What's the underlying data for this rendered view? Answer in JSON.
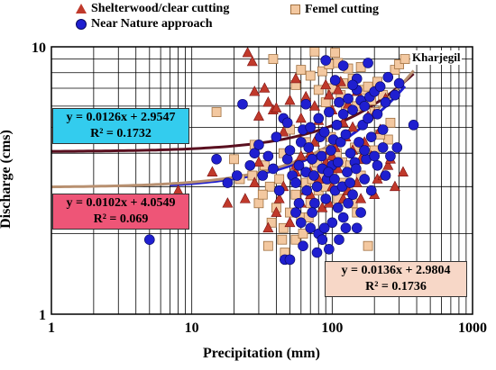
{
  "chart_data": {
    "type": "scatter",
    "xlabel": "Precipitation (mm)",
    "ylabel": "Discharge (cms)",
    "xscale": "log",
    "yscale": "log",
    "xlim": [
      1,
      1000
    ],
    "ylim": [
      1,
      10
    ],
    "x_ticks": [
      "1",
      "10",
      "100",
      "1000"
    ],
    "y_ticks": [
      "1",
      "10"
    ],
    "grid": true,
    "site_label": "Kharjegil",
    "series": [
      {
        "name": "Shelterwood/clear cutting",
        "marker": "triangle",
        "color": "#c0392b",
        "points": [
          [
            8,
            2.9
          ],
          [
            14,
            3.4
          ],
          [
            18,
            2.6
          ],
          [
            25,
            9.5
          ],
          [
            27,
            8.8
          ],
          [
            28,
            6.8
          ],
          [
            30,
            5.5
          ],
          [
            33,
            7.0
          ],
          [
            35,
            6.2
          ],
          [
            38,
            5.8
          ],
          [
            40,
            5.9
          ],
          [
            45,
            4.8
          ],
          [
            50,
            6.3
          ],
          [
            55,
            7.6
          ],
          [
            60,
            5.4
          ],
          [
            65,
            6.5
          ],
          [
            70,
            4.0
          ],
          [
            75,
            6.0
          ],
          [
            80,
            5.3
          ],
          [
            85,
            4.8
          ],
          [
            90,
            7.2
          ],
          [
            95,
            6.6
          ],
          [
            100,
            5.8
          ],
          [
            105,
            4.2
          ],
          [
            110,
            6.9
          ],
          [
            115,
            7.4
          ],
          [
            120,
            5.2
          ],
          [
            125,
            4.6
          ],
          [
            130,
            6.1
          ],
          [
            140,
            5.0
          ],
          [
            150,
            6.8
          ],
          [
            160,
            3.8
          ],
          [
            170,
            4.4
          ],
          [
            180,
            5.5
          ],
          [
            190,
            3.9
          ],
          [
            200,
            5.6
          ],
          [
            210,
            3.2
          ],
          [
            220,
            4.9
          ],
          [
            230,
            3.3
          ],
          [
            240,
            6.4
          ],
          [
            250,
            3.6
          ],
          [
            260,
            3.8
          ],
          [
            280,
            3.0
          ],
          [
            320,
            3.4
          ],
          [
            40,
            2.4
          ],
          [
            45,
            3.0
          ],
          [
            50,
            2.2
          ],
          [
            55,
            3.4
          ],
          [
            60,
            2.6
          ],
          [
            70,
            2.8
          ],
          [
            80,
            3.2
          ],
          [
            90,
            3.7
          ],
          [
            100,
            3.0
          ],
          [
            110,
            3.5
          ],
          [
            120,
            2.7
          ],
          [
            130,
            2.9
          ],
          [
            150,
            3.1
          ],
          [
            30,
            3.7
          ],
          [
            28,
            3.1
          ],
          [
            24,
            2.7
          ],
          [
            35,
            2.1
          ],
          [
            42,
            2.7
          ],
          [
            65,
            2.9
          ],
          [
            85,
            2.5
          ],
          [
            95,
            2.6
          ],
          [
            160,
            2.7
          ],
          [
            200,
            2.8
          ],
          [
            60,
            3.9
          ],
          [
            75,
            4.4
          ],
          [
            95,
            4.1
          ],
          [
            140,
            4.1
          ],
          [
            100,
            3.9
          ],
          [
            55,
            3.6
          ],
          [
            48,
            3.9
          ],
          [
            70,
            3.4
          ]
        ]
      },
      {
        "name": "Femel cutting",
        "marker": "square",
        "color": "#f3c8a0",
        "points": [
          [
            15,
            5.7
          ],
          [
            20,
            3.8
          ],
          [
            22,
            3.2
          ],
          [
            28,
            4.3
          ],
          [
            33,
            3.6
          ],
          [
            36,
            3.0
          ],
          [
            38,
            9.0
          ],
          [
            40,
            2.5
          ],
          [
            42,
            3.2
          ],
          [
            45,
            4.0
          ],
          [
            50,
            4.9
          ],
          [
            55,
            7.2
          ],
          [
            60,
            8.2
          ],
          [
            65,
            4.4
          ],
          [
            70,
            7.8
          ],
          [
            75,
            9.6
          ],
          [
            80,
            6.9
          ],
          [
            85,
            8.1
          ],
          [
            90,
            6.2
          ],
          [
            95,
            8.6
          ],
          [
            100,
            7.0
          ],
          [
            105,
            9.5
          ],
          [
            110,
            8.7
          ],
          [
            115,
            6.6
          ],
          [
            120,
            7.3
          ],
          [
            125,
            5.9
          ],
          [
            130,
            8.3
          ],
          [
            140,
            7.6
          ],
          [
            150,
            6.0
          ],
          [
            160,
            8.4
          ],
          [
            170,
            6.9
          ],
          [
            180,
            7.1
          ],
          [
            190,
            6.3
          ],
          [
            200,
            5.7
          ],
          [
            210,
            7.4
          ],
          [
            230,
            6.6
          ],
          [
            250,
            4.5
          ],
          [
            280,
            8.2
          ],
          [
            300,
            8.6
          ],
          [
            330,
            9.0
          ],
          [
            45,
            2.1
          ],
          [
            50,
            2.4
          ],
          [
            55,
            2.8
          ],
          [
            60,
            2.3
          ],
          [
            65,
            3.1
          ],
          [
            70,
            2.6
          ],
          [
            75,
            3.5
          ],
          [
            80,
            2.9
          ],
          [
            85,
            3.3
          ],
          [
            90,
            3.0
          ],
          [
            100,
            3.4
          ],
          [
            110,
            2.7
          ],
          [
            120,
            3.1
          ],
          [
            130,
            2.9
          ],
          [
            140,
            2.6
          ],
          [
            150,
            2.4
          ],
          [
            160,
            3.3
          ],
          [
            180,
            1.8
          ],
          [
            27,
            3.3
          ],
          [
            30,
            2.6
          ],
          [
            32,
            2.8
          ],
          [
            35,
            1.8
          ],
          [
            37,
            2.2
          ],
          [
            44,
            1.9
          ],
          [
            46,
            1.7
          ],
          [
            55,
            1.9
          ],
          [
            62,
            2.0
          ],
          [
            68,
            2.3
          ],
          [
            72,
            3.2
          ],
          [
            78,
            3.7
          ],
          [
            88,
            4.0
          ],
          [
            98,
            4.6
          ],
          [
            108,
            4.0
          ],
          [
            118,
            3.7
          ],
          [
            135,
            3.6
          ],
          [
            145,
            4.2
          ],
          [
            170,
            3.8
          ],
          [
            200,
            4.1
          ],
          [
            220,
            4.7
          ],
          [
            260,
            5.2
          ]
        ]
      },
      {
        "name": "Near Nature approach",
        "marker": "circle",
        "color": "#1f1fd0",
        "points": [
          [
            5,
            1.9
          ],
          [
            15,
            3.8
          ],
          [
            18,
            3.1
          ],
          [
            21,
            3.3
          ],
          [
            23,
            6.1
          ],
          [
            26,
            3.6
          ],
          [
            28,
            4.0
          ],
          [
            30,
            4.3
          ],
          [
            32,
            3.3
          ],
          [
            35,
            3.9
          ],
          [
            38,
            3.5
          ],
          [
            40,
            4.6
          ],
          [
            42,
            2.9
          ],
          [
            45,
            5.4
          ],
          [
            48,
            3.8
          ],
          [
            50,
            4.1
          ],
          [
            52,
            3.3
          ],
          [
            55,
            3.1
          ],
          [
            58,
            3.6
          ],
          [
            60,
            4.4
          ],
          [
            62,
            4.9
          ],
          [
            65,
            3.4
          ],
          [
            68,
            4.2
          ],
          [
            70,
            5.0
          ],
          [
            72,
            3.8
          ],
          [
            75,
            2.6
          ],
          [
            78,
            3.0
          ],
          [
            80,
            5.4
          ],
          [
            82,
            4.6
          ],
          [
            85,
            3.5
          ],
          [
            88,
            4.8
          ],
          [
            90,
            2.7
          ],
          [
            92,
            3.2
          ],
          [
            95,
            5.7
          ],
          [
            98,
            4.1
          ],
          [
            100,
            3.6
          ],
          [
            102,
            4.5
          ],
          [
            105,
            2.9
          ],
          [
            108,
            5.1
          ],
          [
            110,
            3.7
          ],
          [
            112,
            6.2
          ],
          [
            115,
            4.4
          ],
          [
            118,
            3.0
          ],
          [
            120,
            5.6
          ],
          [
            125,
            4.7
          ],
          [
            128,
            3.4
          ],
          [
            130,
            6.4
          ],
          [
            135,
            4.0
          ],
          [
            140,
            5.8
          ],
          [
            145,
            3.7
          ],
          [
            150,
            6.9
          ],
          [
            155,
            4.4
          ],
          [
            160,
            6.3
          ],
          [
            165,
            5.1
          ],
          [
            170,
            6.0
          ],
          [
            175,
            3.8
          ],
          [
            180,
            5.4
          ],
          [
            185,
            6.5
          ],
          [
            190,
            4.6
          ],
          [
            200,
            6.8
          ],
          [
            210,
            5.6
          ],
          [
            220,
            7.1
          ],
          [
            230,
            4.9
          ],
          [
            240,
            6.2
          ],
          [
            250,
            7.7
          ],
          [
            280,
            6.6
          ],
          [
            300,
            7.3
          ],
          [
            380,
            5.1
          ],
          [
            120,
            8.5
          ],
          [
            180,
            8.7
          ],
          [
            150,
            7.6
          ],
          [
            90,
            8.9
          ],
          [
            105,
            7.5
          ],
          [
            140,
            7.2
          ],
          [
            65,
            6.1
          ],
          [
            48,
            5.2
          ],
          [
            55,
            2.4
          ],
          [
            60,
            2.2
          ],
          [
            70,
            2.1
          ],
          [
            80,
            2.0
          ],
          [
            85,
            1.9
          ],
          [
            95,
            1.75
          ],
          [
            100,
            2.2
          ],
          [
            110,
            2.5
          ],
          [
            120,
            2.3
          ],
          [
            130,
            2.6
          ],
          [
            140,
            2.8
          ],
          [
            150,
            2.1
          ],
          [
            46,
            1.6
          ],
          [
            50,
            1.6
          ],
          [
            62,
            1.8
          ],
          [
            72,
            2.4
          ],
          [
            78,
            1.7
          ],
          [
            88,
            2.1
          ],
          [
            112,
            1.9
          ],
          [
            125,
            2.1
          ],
          [
            160,
            2.4
          ],
          [
            170,
            3.2
          ],
          [
            190,
            2.9
          ],
          [
            210,
            3.6
          ],
          [
            240,
            3.3
          ],
          [
            260,
            3.9
          ],
          [
            290,
            4.2
          ],
          [
            58,
            2.6
          ],
          [
            66,
            2.9
          ],
          [
            74,
            3.3
          ],
          [
            84,
            3.9
          ],
          [
            94,
            3.4
          ],
          [
            104,
            3.2
          ],
          [
            134,
            3.1
          ],
          [
            148,
            3.5
          ],
          [
            170,
            4.1
          ],
          [
            200,
            3.9
          ],
          [
            230,
            4.2
          ]
        ]
      }
    ],
    "trendlines": [
      {
        "series": "Near Nature approach",
        "color": "#1f1fd0",
        "slope": 0.0126,
        "intercept": 2.9547,
        "x_range": [
          7,
          330
        ],
        "equation": "y = 0.0126x + 2.9547",
        "r2": "R² = 0.1732",
        "box_color": "#33ccee"
      },
      {
        "series": "Shelterwood/clear cutting",
        "color": "#5a1020",
        "slope": 0.0102,
        "intercept": 4.0549,
        "x_range": [
          1,
          380
        ],
        "equation": "y = 0.0102x + 4.0549",
        "r2": "R² = 0.069",
        "box_color": "#ee5577"
      },
      {
        "series": "Femel cutting",
        "color": "#b89070",
        "slope": 0.0136,
        "intercept": 2.9804,
        "x_range": [
          1,
          380
        ],
        "equation": "y = 0.0136x + 2.9804",
        "r2": "R² = 0.1736",
        "box_color": "#f7d7c7"
      }
    ]
  }
}
